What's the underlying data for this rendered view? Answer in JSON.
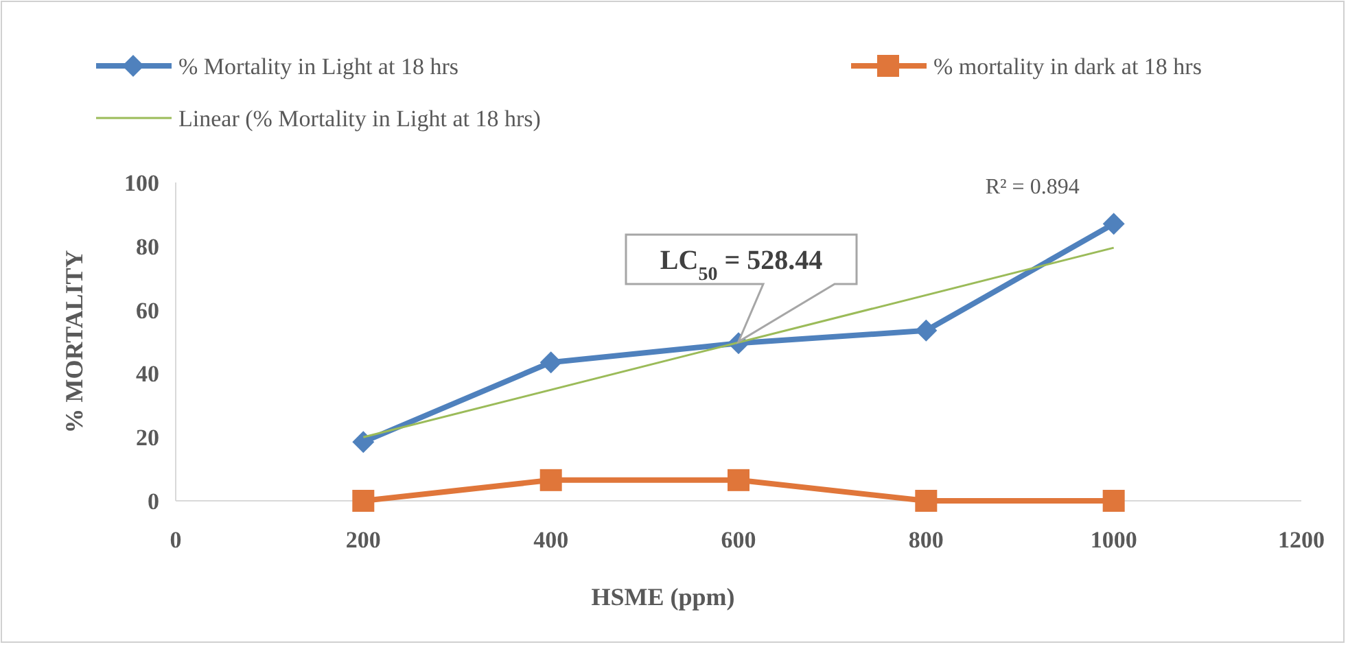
{
  "chart_data": {
    "type": "line",
    "xlabel": "HSME (ppm)",
    "ylabel": "% MORTALITY",
    "x": [
      200,
      400,
      600,
      800,
      1000
    ],
    "xlim": [
      0,
      1200
    ],
    "xticks": [
      0,
      200,
      400,
      600,
      800,
      1000,
      1200
    ],
    "ylim": [
      0,
      100
    ],
    "yticks": [
      0,
      20,
      40,
      60,
      80,
      100
    ],
    "grid": false,
    "legend": "top left",
    "series": [
      {
        "name": "% Mortality in Light at 18 hrs",
        "color": "#4f81bd",
        "values": [
          18.5,
          43.5,
          49.5,
          53.5,
          87
        ],
        "marker": "diamond"
      },
      {
        "name": "% mortality in dark at 18 hrs",
        "color": "#e0763a",
        "values": [
          0,
          6.5,
          6.5,
          0,
          0
        ],
        "marker": "square"
      },
      {
        "name": "Linear (% Mortality in Light at 18 hrs)",
        "type": "line",
        "color": "#9bbb59",
        "x": [
          200,
          1000
        ],
        "values": [
          20,
          79.5
        ],
        "marker": "none"
      }
    ],
    "annotations": [
      {
        "text": "LC$_{50}$ = 528.44",
        "x": 600,
        "y": 50
      },
      "R² = 0.894"
    ]
  }
}
